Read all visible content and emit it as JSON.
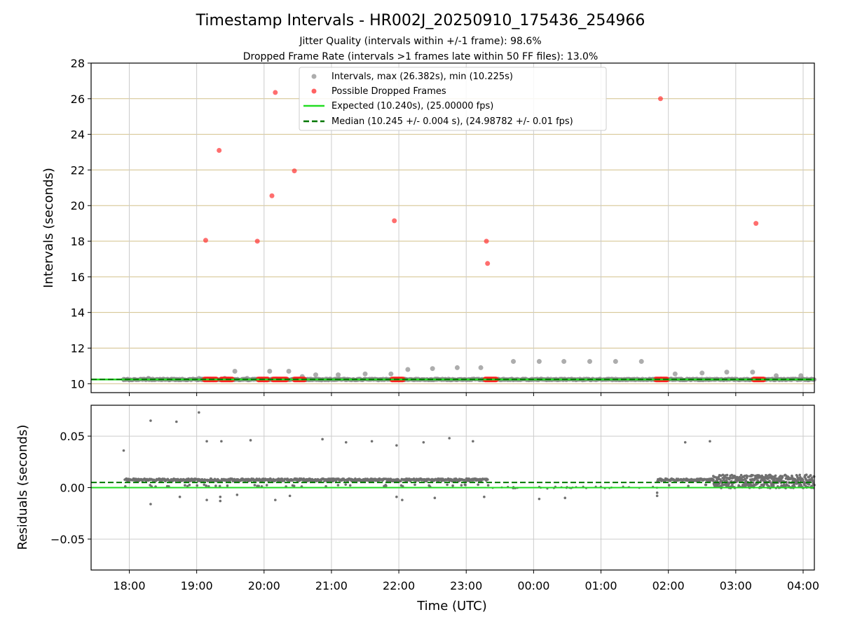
{
  "chart_data": [
    {
      "type": "scatter",
      "title": "Timestamp Intervals - HR002J_20250910_175436_254966",
      "subtitle_lines": [
        "Jitter Quality (intervals within +/-1 frame): 98.6%",
        "Dropped Frame Rate (intervals >1 frames late within 50 FF files): 13.0%"
      ],
      "xlabel": "",
      "ylabel": "Intervals (seconds)",
      "ylim": [
        9.5,
        28
      ],
      "y_ticks": [
        10,
        12,
        14,
        16,
        18,
        20,
        22,
        24,
        26,
        28
      ],
      "grid": "horizontal tan lines, vertical gray lines",
      "legend_position": "top-center",
      "legend": [
        "Intervals, max (26.382s), min (10.225s)",
        "Possible Dropped Frames",
        "Expected (10.240s), (25.00000 fps)",
        "Median (10.245 +/- 0.004 s), (24.98782 +/- 0.01 fps)"
      ],
      "expected_line": 10.24,
      "median_line": 10.245,
      "interval_points": [
        [
          "17:55",
          10.25
        ],
        [
          "18:17",
          10.3
        ],
        [
          "18:40",
          10.25
        ],
        [
          "19:02",
          10.3
        ],
        [
          "19:25",
          10.3
        ],
        [
          "19:34",
          10.7
        ],
        [
          "19:45",
          10.3
        ],
        [
          "20:05",
          10.7
        ],
        [
          "20:22",
          10.7
        ],
        [
          "20:34",
          10.4
        ],
        [
          "20:46",
          10.5
        ],
        [
          "21:06",
          10.5
        ],
        [
          "21:30",
          10.55
        ],
        [
          "21:53",
          10.55
        ],
        [
          "22:08",
          10.8
        ],
        [
          "22:30",
          10.85
        ],
        [
          "22:52",
          10.9
        ],
        [
          "23:13",
          10.9
        ],
        [
          "23:42",
          11.25
        ],
        [
          "24:05",
          11.25
        ],
        [
          "24:27",
          11.25
        ],
        [
          "24:50",
          11.25
        ],
        [
          "25:13",
          11.25
        ],
        [
          "25:36",
          11.25
        ],
        [
          "26:06",
          10.55
        ],
        [
          "26:30",
          10.6
        ],
        [
          "26:52",
          10.65
        ],
        [
          "27:15",
          10.65
        ],
        [
          "27:36",
          10.45
        ],
        [
          "27:58",
          10.45
        ]
      ],
      "dropped_points": [
        [
          "19:08",
          18.05
        ],
        [
          "19:20",
          23.1
        ],
        [
          "19:54",
          18.0
        ],
        [
          "20:07",
          20.55
        ],
        [
          "20:10",
          26.35
        ],
        [
          "20:27",
          21.95
        ],
        [
          "21:56",
          19.15
        ],
        [
          "23:18",
          18.0
        ],
        [
          "23:19",
          16.75
        ],
        [
          "25:53",
          26.0
        ],
        [
          "27:18",
          19.0
        ]
      ],
      "dropped_clusters": [
        [
          "19:07",
          "19:18"
        ],
        [
          "19:22",
          "19:32"
        ],
        [
          "19:55",
          "20:03"
        ],
        [
          "20:08",
          "20:20"
        ],
        [
          "20:27",
          "20:36"
        ],
        [
          "21:54",
          "22:04"
        ],
        [
          "23:17",
          "23:27"
        ],
        [
          "25:49",
          "25:59"
        ],
        [
          "27:16",
          "27:25"
        ]
      ]
    },
    {
      "type": "scatter",
      "xlabel": "Time (UTC)",
      "ylabel": "Residuals (seconds)",
      "ylim": [
        -0.08,
        0.08
      ],
      "y_ticks": [
        -0.05,
        0.0,
        0.05
      ],
      "y_tick_labels": [
        "−0.05",
        "0.00",
        "0.05"
      ],
      "x_tick_labels": [
        "18:00",
        "19:00",
        "20:00",
        "21:00",
        "22:00",
        "23:00",
        "00:00",
        "01:00",
        "02:00",
        "03:00",
        "04:00"
      ],
      "expected_line": 0.0,
      "median_line": 0.005,
      "outliers": [
        [
          "17:55",
          0.036
        ],
        [
          "18:19",
          0.065
        ],
        [
          "18:42",
          0.064
        ],
        [
          "19:02",
          0.073
        ],
        [
          "19:09",
          0.045
        ],
        [
          "19:22",
          0.045
        ],
        [
          "19:48",
          0.046
        ],
        [
          "20:52",
          0.047
        ],
        [
          "21:13",
          0.044
        ],
        [
          "21:36",
          0.045
        ],
        [
          "21:58",
          0.041
        ],
        [
          "22:22",
          0.044
        ],
        [
          "22:45",
          0.048
        ],
        [
          "23:06",
          0.045
        ],
        [
          "26:15",
          0.044
        ],
        [
          "26:37",
          0.045
        ],
        [
          "18:19",
          -0.016
        ],
        [
          "18:45",
          -0.009
        ],
        [
          "19:09",
          -0.012
        ],
        [
          "19:21",
          -0.013
        ],
        [
          "19:21",
          -0.009
        ],
        [
          "19:36",
          -0.007
        ],
        [
          "20:10",
          -0.012
        ],
        [
          "20:23",
          -0.008
        ],
        [
          "21:58",
          -0.009
        ],
        [
          "22:03",
          -0.012
        ],
        [
          "22:32",
          -0.01
        ],
        [
          "23:16",
          -0.009
        ],
        [
          "24:05",
          -0.011
        ],
        [
          "24:28",
          -0.01
        ],
        [
          "25:50",
          -0.008
        ],
        [
          "25:50",
          -0.005
        ]
      ],
      "cluster_bands": [
        [
          "17:56",
          "27:56",
          0.0075
        ],
        [
          "26:40",
          "28:10",
          0.0075
        ]
      ]
    }
  ],
  "colors": {
    "interval": "#8a8a8a",
    "dropped": "#ff2020",
    "expected": "#22dd22",
    "median": "#007700",
    "residual": "#707070",
    "grid_h": "#d2c08a",
    "grid_v": "#cccccc"
  }
}
